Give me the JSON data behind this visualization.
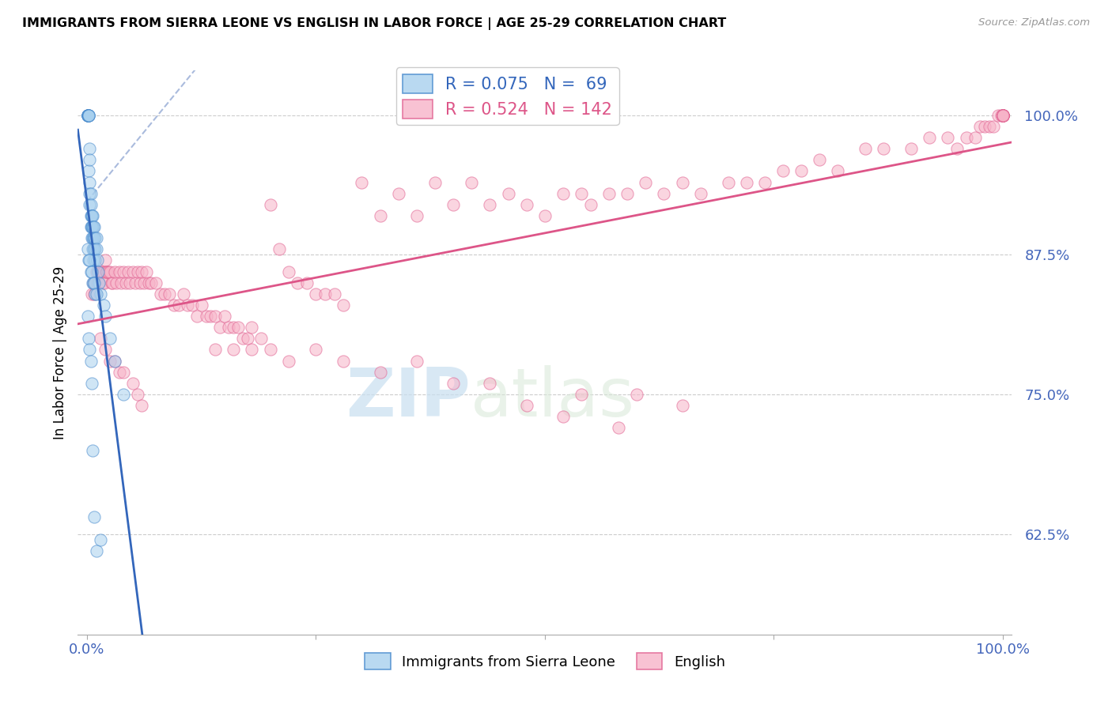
{
  "title": "IMMIGRANTS FROM SIERRA LEONE VS ENGLISH IN LABOR FORCE | AGE 25-29 CORRELATION CHART",
  "source": "Source: ZipAtlas.com",
  "ylabel": "In Labor Force | Age 25-29",
  "yticks": [
    0.625,
    0.75,
    0.875,
    1.0
  ],
  "ytick_labels": [
    "62.5%",
    "75.0%",
    "87.5%",
    "100.0%"
  ],
  "xlim": [
    -0.01,
    1.01
  ],
  "ylim": [
    0.535,
    1.04
  ],
  "legend_blue_R": "R = 0.075",
  "legend_blue_N": "N =  69",
  "legend_pink_R": "R = 0.524",
  "legend_pink_N": "N = 142",
  "blue_fill": "#a8d0ee",
  "pink_fill": "#f7b3c8",
  "blue_edge": "#4488cc",
  "pink_edge": "#e06090",
  "blue_line_color": "#3366bb",
  "pink_line_color": "#dd5588",
  "dash_line_color": "#aabbdd",
  "watermark_color": "#ccddf0",
  "blue_x": [
    0.001,
    0.001,
    0.001,
    0.001,
    0.001,
    0.001,
    0.002,
    0.002,
    0.002,
    0.002,
    0.002,
    0.003,
    0.003,
    0.003,
    0.003,
    0.003,
    0.004,
    0.004,
    0.004,
    0.004,
    0.005,
    0.005,
    0.005,
    0.005,
    0.005,
    0.006,
    0.006,
    0.006,
    0.006,
    0.007,
    0.007,
    0.007,
    0.007,
    0.008,
    0.008,
    0.008,
    0.009,
    0.009,
    0.009,
    0.01,
    0.01,
    0.011,
    0.012,
    0.013,
    0.015,
    0.018,
    0.02,
    0.025,
    0.03,
    0.04,
    0.001,
    0.002,
    0.003,
    0.004,
    0.005,
    0.006,
    0.007,
    0.008,
    0.009,
    0.01,
    0.001,
    0.002,
    0.003,
    0.004,
    0.005,
    0.006,
    0.008,
    0.01,
    0.015
  ],
  "blue_y": [
    1.0,
    1.0,
    1.0,
    1.0,
    1.0,
    1.0,
    1.0,
    1.0,
    1.0,
    1.0,
    0.95,
    0.97,
    0.96,
    0.94,
    0.93,
    0.92,
    0.93,
    0.92,
    0.91,
    0.9,
    0.91,
    0.9,
    0.91,
    0.9,
    0.89,
    0.91,
    0.9,
    0.89,
    0.88,
    0.9,
    0.89,
    0.88,
    0.87,
    0.9,
    0.89,
    0.88,
    0.89,
    0.88,
    0.87,
    0.89,
    0.88,
    0.87,
    0.86,
    0.85,
    0.84,
    0.83,
    0.82,
    0.8,
    0.78,
    0.75,
    0.88,
    0.87,
    0.87,
    0.86,
    0.86,
    0.85,
    0.85,
    0.85,
    0.84,
    0.84,
    0.82,
    0.8,
    0.79,
    0.78,
    0.76,
    0.7,
    0.64,
    0.61,
    0.62
  ],
  "pink_x": [
    0.005,
    0.007,
    0.008,
    0.009,
    0.01,
    0.011,
    0.012,
    0.013,
    0.015,
    0.016,
    0.017,
    0.018,
    0.019,
    0.02,
    0.021,
    0.022,
    0.023,
    0.025,
    0.027,
    0.028,
    0.03,
    0.032,
    0.035,
    0.037,
    0.04,
    0.042,
    0.045,
    0.047,
    0.05,
    0.053,
    0.055,
    0.058,
    0.06,
    0.062,
    0.065,
    0.067,
    0.07,
    0.075,
    0.08,
    0.085,
    0.09,
    0.095,
    0.1,
    0.105,
    0.11,
    0.115,
    0.12,
    0.125,
    0.13,
    0.135,
    0.14,
    0.145,
    0.15,
    0.155,
    0.16,
    0.165,
    0.17,
    0.175,
    0.18,
    0.19,
    0.2,
    0.21,
    0.22,
    0.23,
    0.24,
    0.25,
    0.26,
    0.27,
    0.28,
    0.3,
    0.32,
    0.34,
    0.36,
    0.38,
    0.4,
    0.42,
    0.44,
    0.46,
    0.48,
    0.5,
    0.52,
    0.54,
    0.55,
    0.57,
    0.59,
    0.61,
    0.63,
    0.65,
    0.67,
    0.7,
    0.72,
    0.74,
    0.76,
    0.78,
    0.8,
    0.82,
    0.85,
    0.87,
    0.9,
    0.92,
    0.94,
    0.95,
    0.96,
    0.97,
    0.975,
    0.98,
    0.985,
    0.99,
    0.995,
    0.998,
    1.0,
    1.0,
    1.0,
    1.0,
    1.0,
    1.0,
    1.0,
    1.0,
    1.0,
    1.0,
    0.015,
    0.02,
    0.025,
    0.03,
    0.035,
    0.04,
    0.05,
    0.055,
    0.06,
    0.14,
    0.16,
    0.18,
    0.2,
    0.22,
    0.25,
    0.28,
    0.32,
    0.36,
    0.4,
    0.44,
    0.48,
    0.54,
    0.6,
    0.65,
    0.52,
    0.58
  ],
  "pink_y": [
    0.84,
    0.85,
    0.84,
    0.85,
    0.86,
    0.85,
    0.86,
    0.85,
    0.86,
    0.86,
    0.85,
    0.86,
    0.85,
    0.87,
    0.86,
    0.86,
    0.86,
    0.86,
    0.85,
    0.85,
    0.86,
    0.85,
    0.86,
    0.85,
    0.86,
    0.85,
    0.86,
    0.85,
    0.86,
    0.85,
    0.86,
    0.85,
    0.86,
    0.85,
    0.86,
    0.85,
    0.85,
    0.85,
    0.84,
    0.84,
    0.84,
    0.83,
    0.83,
    0.84,
    0.83,
    0.83,
    0.82,
    0.83,
    0.82,
    0.82,
    0.82,
    0.81,
    0.82,
    0.81,
    0.81,
    0.81,
    0.8,
    0.8,
    0.81,
    0.8,
    0.92,
    0.88,
    0.86,
    0.85,
    0.85,
    0.84,
    0.84,
    0.84,
    0.83,
    0.94,
    0.91,
    0.93,
    0.91,
    0.94,
    0.92,
    0.94,
    0.92,
    0.93,
    0.92,
    0.91,
    0.93,
    0.93,
    0.92,
    0.93,
    0.93,
    0.94,
    0.93,
    0.94,
    0.93,
    0.94,
    0.94,
    0.94,
    0.95,
    0.95,
    0.96,
    0.95,
    0.97,
    0.97,
    0.97,
    0.98,
    0.98,
    0.97,
    0.98,
    0.98,
    0.99,
    0.99,
    0.99,
    0.99,
    1.0,
    1.0,
    1.0,
    1.0,
    1.0,
    1.0,
    1.0,
    1.0,
    1.0,
    1.0,
    1.0,
    1.0,
    0.8,
    0.79,
    0.78,
    0.78,
    0.77,
    0.77,
    0.76,
    0.75,
    0.74,
    0.79,
    0.79,
    0.79,
    0.79,
    0.78,
    0.79,
    0.78,
    0.77,
    0.78,
    0.76,
    0.76,
    0.74,
    0.75,
    0.75,
    0.74,
    0.73,
    0.72
  ]
}
